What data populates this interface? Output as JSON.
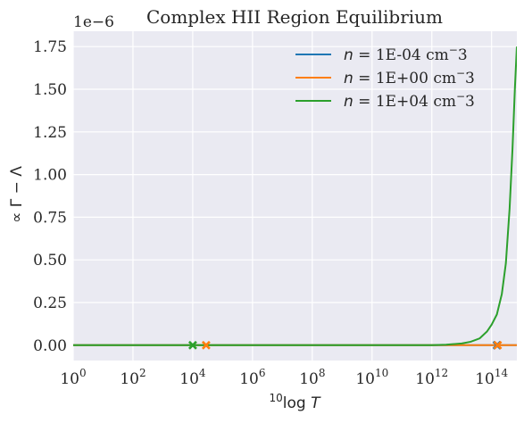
{
  "chart_data": {
    "type": "line",
    "title": "Complex HII Region Equilibrium",
    "xlabel": "log T",
    "xlabel_prefix": "10",
    "ylabel": "∝ Γ − Λ",
    "offset_text": "1e−6",
    "xscale": "log",
    "xlim": [
      1,
      700000000000000.0
    ],
    "ylim": [
      -0.09,
      1.84
    ],
    "ylim_unit_multiplier": 1e-06,
    "grid": true,
    "legend_position": "top-right",
    "x_ticks": [
      {
        "value": 1,
        "base": "10",
        "exp": "0"
      },
      {
        "value": 100,
        "base": "10",
        "exp": "2"
      },
      {
        "value": 10000,
        "base": "10",
        "exp": "4"
      },
      {
        "value": 1000000,
        "base": "10",
        "exp": "6"
      },
      {
        "value": 100000000,
        "base": "10",
        "exp": "8"
      },
      {
        "value": 10000000000,
        "base": "10",
        "exp": "10"
      },
      {
        "value": 1000000000000,
        "base": "10",
        "exp": "12"
      },
      {
        "value": 100000000000000,
        "base": "10",
        "exp": "14"
      }
    ],
    "y_ticks": [
      "0.00",
      "0.25",
      "0.50",
      "0.75",
      "1.00",
      "1.25",
      "1.50",
      "1.75"
    ],
    "y_tick_values": [
      0,
      0.25,
      0.5,
      0.75,
      1.0,
      1.25,
      1.5,
      1.75
    ],
    "series": [
      {
        "name": "n = 1E-04 cm⁻3",
        "legend_var": "n",
        "legend_rest": " = 1E-04 cm",
        "legend_sup": "−",
        "legend_end": "3",
        "color": "#1f77b4",
        "x": [
          1,
          1000000000000.0,
          10000000000000.0,
          100000000000000.0,
          160000000000000.0,
          700000000000000.0
        ],
        "y": [
          0,
          0,
          0,
          0,
          0,
          0
        ],
        "equilibrium_points": [
          150000000000000.0
        ]
      },
      {
        "name": "n = 1E+00 cm⁻3",
        "legend_var": "n",
        "legend_rest": " = 1E+00 cm",
        "legend_sup": "−",
        "legend_end": "3",
        "color": "#ff7f0e",
        "x": [
          1,
          1000000000000.0,
          10000000000000.0,
          100000000000000.0,
          700000000000000.0
        ],
        "y": [
          0,
          0,
          0,
          0,
          0
        ],
        "equilibrium_points": [
          28000,
          160000000000000.0
        ]
      },
      {
        "name": "n = 1E+04 cm⁻3",
        "legend_var": "n",
        "legend_rest": " = 1E+04 cm",
        "legend_sup": "−",
        "legend_end": "3",
        "color": "#2ca02c",
        "x": [
          1,
          1000000000000.0,
          3000000000000.0,
          10000000000000.0,
          20000000000000.0,
          40000000000000.0,
          70000000000000.0,
          100000000000000.0,
          150000000000000.0,
          220000000000000.0,
          300000000000000.0,
          400000000000000.0,
          500000000000000.0,
          600000000000000.0,
          700000000000000.0
        ],
        "y": [
          0,
          0,
          0.003,
          0.01,
          0.02,
          0.04,
          0.08,
          0.12,
          0.18,
          0.3,
          0.48,
          0.8,
          1.15,
          1.5,
          1.75
        ],
        "equilibrium_points": [
          10000
        ]
      }
    ]
  }
}
